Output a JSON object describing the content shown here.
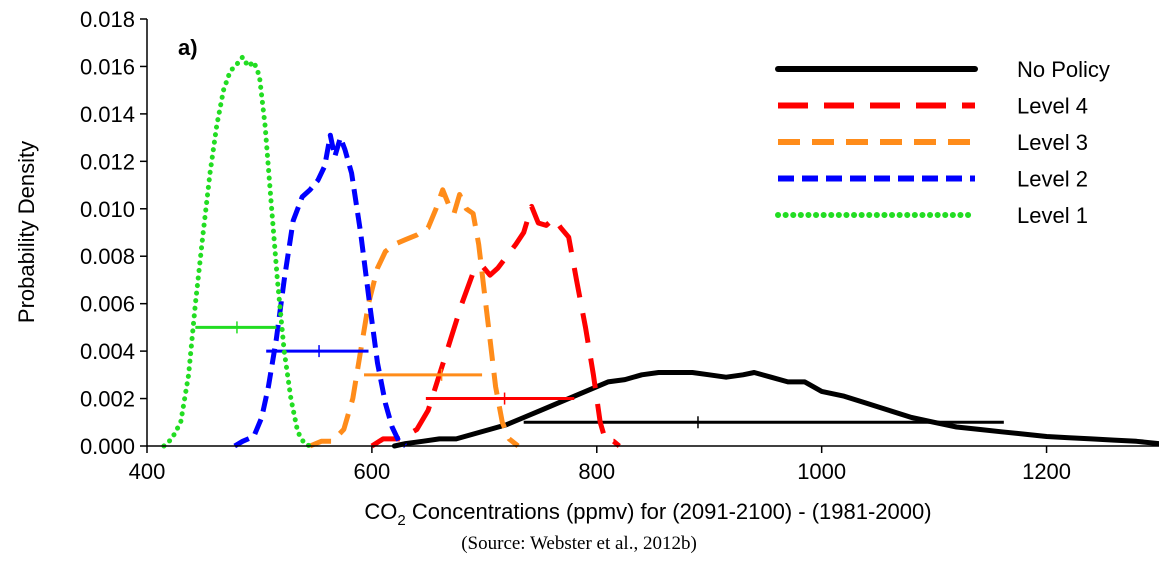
{
  "chart_data": {
    "type": "line",
    "panel_label": "a)",
    "xlabel": {
      "prefix": "CO",
      "subscript": "2",
      "suffix": " Concentrations (ppmv) for (2091-2100) - (1981-2000)"
    },
    "ylabel": "Probability Density",
    "source": "(Source: Webster et al., 2012b)",
    "xlim": [
      400,
      1300
    ],
    "ylim": [
      0,
      0.018
    ],
    "x_ticks": [
      400,
      600,
      800,
      1000,
      1200
    ],
    "y_ticks": [
      "0.000",
      "0.002",
      "0.004",
      "0.006",
      "0.008",
      "0.010",
      "0.012",
      "0.014",
      "0.016",
      "0.018"
    ],
    "grid": false,
    "legend_position": "top-right",
    "series": [
      {
        "name": "No Policy",
        "color": "#000000",
        "style": "solid",
        "points": [
          [
            620,
            0
          ],
          [
            630,
            0.0001
          ],
          [
            645,
            0.0002
          ],
          [
            660,
            0.0003
          ],
          [
            675,
            0.0003
          ],
          [
            690,
            0.0005
          ],
          [
            705,
            0.0007
          ],
          [
            720,
            0.0009
          ],
          [
            735,
            0.0012
          ],
          [
            750,
            0.0015
          ],
          [
            765,
            0.0018
          ],
          [
            780,
            0.0021
          ],
          [
            795,
            0.0024
          ],
          [
            810,
            0.0027
          ],
          [
            825,
            0.0028
          ],
          [
            840,
            0.003
          ],
          [
            855,
            0.0031
          ],
          [
            870,
            0.0031
          ],
          [
            885,
            0.0031
          ],
          [
            900,
            0.003
          ],
          [
            915,
            0.0029
          ],
          [
            930,
            0.003
          ],
          [
            940,
            0.0031
          ],
          [
            955,
            0.0029
          ],
          [
            970,
            0.0027
          ],
          [
            985,
            0.0027
          ],
          [
            1000,
            0.0023
          ],
          [
            1020,
            0.0021
          ],
          [
            1040,
            0.0018
          ],
          [
            1060,
            0.0015
          ],
          [
            1080,
            0.0012
          ],
          [
            1100,
            0.001
          ],
          [
            1120,
            0.0008
          ],
          [
            1140,
            0.0007
          ],
          [
            1160,
            0.0006
          ],
          [
            1180,
            0.0005
          ],
          [
            1200,
            0.0004
          ],
          [
            1220,
            0.00035
          ],
          [
            1240,
            0.0003
          ],
          [
            1260,
            0.00025
          ],
          [
            1280,
            0.0002
          ],
          [
            1300,
            0.0001
          ]
        ],
        "interval": {
          "low": 735,
          "high": 1162,
          "median": 890,
          "y": 0.001
        }
      },
      {
        "name": "Level 4",
        "color": "#ff0000",
        "style": "dash-long",
        "points": [
          [
            600,
            0
          ],
          [
            610,
            0.0003
          ],
          [
            625,
            0.0003
          ],
          [
            640,
            0.0007
          ],
          [
            650,
            0.0015
          ],
          [
            660,
            0.003
          ],
          [
            670,
            0.0045
          ],
          [
            680,
            0.006
          ],
          [
            690,
            0.0073
          ],
          [
            698,
            0.0076
          ],
          [
            705,
            0.0072
          ],
          [
            712,
            0.0075
          ],
          [
            720,
            0.008
          ],
          [
            728,
            0.0085
          ],
          [
            735,
            0.009
          ],
          [
            742,
            0.0101
          ],
          [
            748,
            0.0094
          ],
          [
            755,
            0.0093
          ],
          [
            762,
            0.0096
          ],
          [
            768,
            0.0092
          ],
          [
            775,
            0.0088
          ],
          [
            782,
            0.007
          ],
          [
            790,
            0.005
          ],
          [
            797,
            0.003
          ],
          [
            803,
            0.001
          ],
          [
            808,
            0.0002
          ],
          [
            815,
            0.0002
          ],
          [
            820,
            0
          ]
        ],
        "interval": {
          "low": 648,
          "high": 780,
          "median": 718,
          "y": 0.002
        }
      },
      {
        "name": "Level 3",
        "color": "#ff8c1a",
        "style": "dash-medium",
        "points": [
          [
            545,
            0
          ],
          [
            555,
            0.0002
          ],
          [
            565,
            0.0002
          ],
          [
            575,
            0.0007
          ],
          [
            583,
            0.002
          ],
          [
            590,
            0.004
          ],
          [
            597,
            0.006
          ],
          [
            605,
            0.0075
          ],
          [
            612,
            0.0082
          ],
          [
            620,
            0.0085
          ],
          [
            630,
            0.0087
          ],
          [
            640,
            0.0089
          ],
          [
            650,
            0.0092
          ],
          [
            657,
            0.01
          ],
          [
            663,
            0.0108
          ],
          [
            668,
            0.0102
          ],
          [
            673,
            0.0098
          ],
          [
            678,
            0.0106
          ],
          [
            684,
            0.01
          ],
          [
            690,
            0.0098
          ],
          [
            695,
            0.0085
          ],
          [
            700,
            0.0065
          ],
          [
            705,
            0.0045
          ],
          [
            710,
            0.0025
          ],
          [
            716,
            0.001
          ],
          [
            722,
            0.0003
          ],
          [
            730,
            0
          ]
        ],
        "interval": {
          "low": 593,
          "high": 698,
          "median": 662,
          "y": 0.003
        }
      },
      {
        "name": "Level 2",
        "color": "#0000ff",
        "style": "dash-short",
        "points": [
          [
            478,
            0
          ],
          [
            485,
            0.0002
          ],
          [
            495,
            0.0004
          ],
          [
            502,
            0.0012
          ],
          [
            508,
            0.0025
          ],
          [
            515,
            0.0045
          ],
          [
            522,
            0.007
          ],
          [
            530,
            0.0095
          ],
          [
            538,
            0.0105
          ],
          [
            545,
            0.0108
          ],
          [
            552,
            0.0112
          ],
          [
            558,
            0.0118
          ],
          [
            563,
            0.0131
          ],
          [
            567,
            0.0122
          ],
          [
            572,
            0.013
          ],
          [
            576,
            0.0125
          ],
          [
            582,
            0.0115
          ],
          [
            590,
            0.009
          ],
          [
            598,
            0.006
          ],
          [
            605,
            0.0035
          ],
          [
            612,
            0.0018
          ],
          [
            618,
            0.0008
          ],
          [
            624,
            0.0002
          ],
          [
            630,
            0
          ]
        ],
        "interval": {
          "low": 506,
          "high": 597,
          "median": 553,
          "y": 0.004
        }
      },
      {
        "name": "Level 1",
        "color": "#22dd22",
        "style": "dotted",
        "points": [
          [
            415,
            0
          ],
          [
            422,
            0.0003
          ],
          [
            430,
            0.001
          ],
          [
            437,
            0.003
          ],
          [
            443,
            0.006
          ],
          [
            450,
            0.009
          ],
          [
            456,
            0.0115
          ],
          [
            462,
            0.0135
          ],
          [
            468,
            0.015
          ],
          [
            474,
            0.0158
          ],
          [
            480,
            0.0161
          ],
          [
            485,
            0.0164
          ],
          [
            490,
            0.016
          ],
          [
            495,
            0.0162
          ],
          [
            500,
            0.0156
          ],
          [
            505,
            0.0135
          ],
          [
            510,
            0.0105
          ],
          [
            516,
            0.007
          ],
          [
            522,
            0.004
          ],
          [
            528,
            0.002
          ],
          [
            534,
            0.0006
          ],
          [
            540,
            0.0001
          ],
          [
            545,
            0
          ]
        ],
        "interval": {
          "low": 443,
          "high": 515,
          "median": 480,
          "y": 0.005
        }
      }
    ]
  }
}
